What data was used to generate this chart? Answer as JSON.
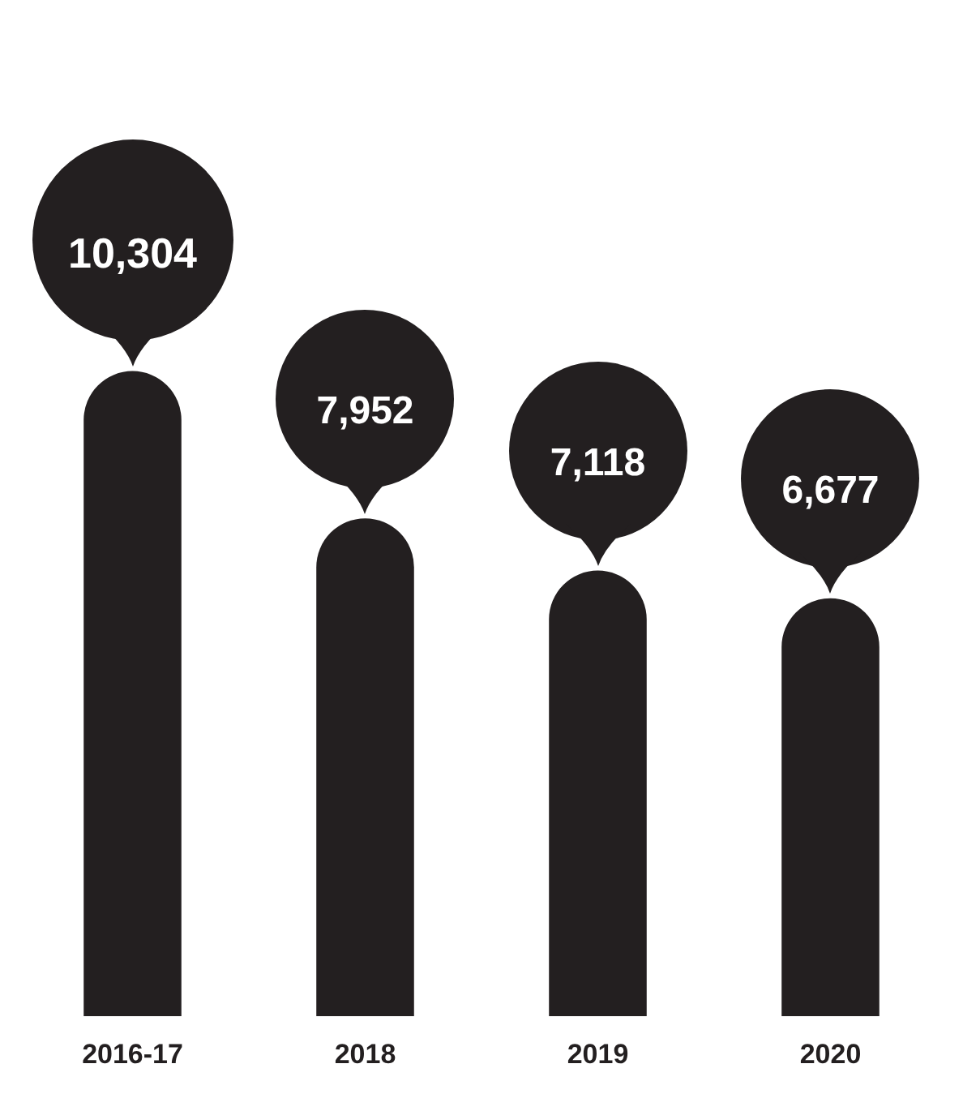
{
  "chart_data": {
    "type": "bar",
    "categories": [
      "2016-17",
      "2018",
      "2019",
      "2020"
    ],
    "values": [
      10304,
      7952,
      7118,
      6677
    ],
    "value_labels": [
      "10,304",
      "7,952",
      "7,118",
      "6,677"
    ],
    "color": "#231f20",
    "grid": false,
    "legend": false
  }
}
